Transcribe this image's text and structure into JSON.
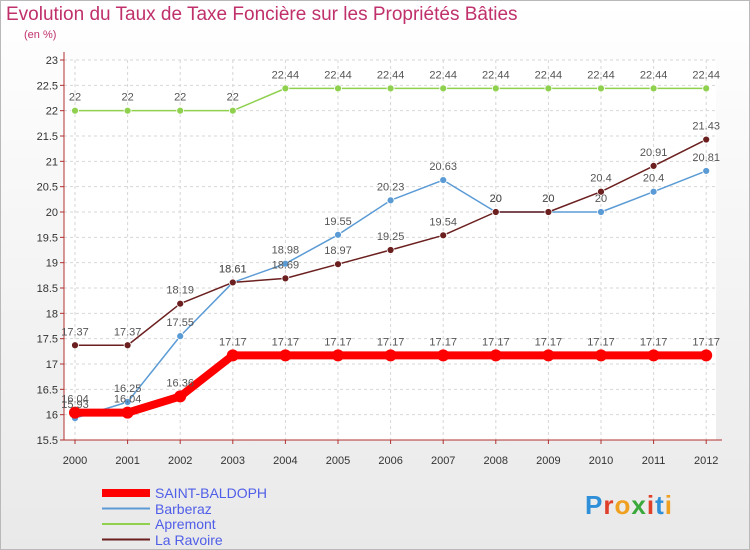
{
  "title": "Evolution du Taux de Taxe Foncière sur les Propriétés Bâties",
  "subtitle": "(en %)",
  "logo": {
    "letters": [
      "P",
      "r",
      "o",
      "x",
      "i",
      "t",
      "i"
    ],
    "colors": [
      "#2f8fd8",
      "#e0402a",
      "#f0a020",
      "#3aa83a",
      "#e0402a",
      "#2f8fd8",
      "#f0a020"
    ]
  },
  "chart_data": {
    "type": "line",
    "x": [
      2000,
      2001,
      2002,
      2003,
      2004,
      2005,
      2006,
      2007,
      2008,
      2009,
      2010,
      2011,
      2012
    ],
    "ylim": [
      15.5,
      23
    ],
    "yticks": [
      15.5,
      16,
      16.5,
      17,
      17.5,
      18,
      18.5,
      19,
      19.5,
      20,
      20.5,
      21,
      21.5,
      22,
      22.5,
      23
    ],
    "grid": true,
    "legend_position": "bottom-left",
    "series": [
      {
        "name": "SAINT-BALDOPH",
        "color": "#ff0000",
        "values": [
          16.04,
          16.04,
          16.36,
          17.17,
          17.17,
          17.17,
          17.17,
          17.17,
          17.17,
          17.17,
          17.17,
          17.17,
          17.17
        ],
        "labels": [
          "16.04",
          "16.04",
          "16.36",
          "17.17",
          "17.17",
          "17.17",
          "17.17",
          "17.17",
          "17.17",
          "17.17",
          "17.17",
          "17.17",
          "17.17"
        ]
      },
      {
        "name": "Barberaz",
        "color": "#5b9bd5",
        "values": [
          15.93,
          16.25,
          17.55,
          18.61,
          18.98,
          19.55,
          20.23,
          20.63,
          20,
          20,
          20,
          20.4,
          20.81
        ],
        "labels": [
          "15.93",
          "16.25",
          "17.55",
          "18.61",
          "18.98",
          "19.55",
          "20.23",
          "20.63",
          "20",
          "20",
          "20",
          "20.4",
          "20.81"
        ]
      },
      {
        "name": "Apremont",
        "color": "#8fd14f",
        "values": [
          22,
          22,
          22,
          22,
          22.44,
          22.44,
          22.44,
          22.44,
          22.44,
          22.44,
          22.44,
          22.44,
          22.44
        ],
        "labels": [
          "22",
          "22",
          "22",
          "22",
          "22.44",
          "22.44",
          "22.44",
          "22.44",
          "22.44",
          "22.44",
          "22.44",
          "22.44",
          "22.44"
        ]
      },
      {
        "name": "La Ravoire",
        "color": "#6b1f1f",
        "values": [
          17.37,
          17.37,
          18.19,
          18.61,
          18.69,
          18.97,
          19.25,
          19.54,
          20,
          20,
          20.4,
          20.91,
          21.43
        ],
        "labels": [
          "17.37",
          "17.37",
          "18.19",
          "18.61",
          "18.69",
          "18.97",
          "19.25",
          "19.54",
          "20",
          "20",
          "20.4",
          "20.91",
          "21.43"
        ]
      }
    ]
  }
}
